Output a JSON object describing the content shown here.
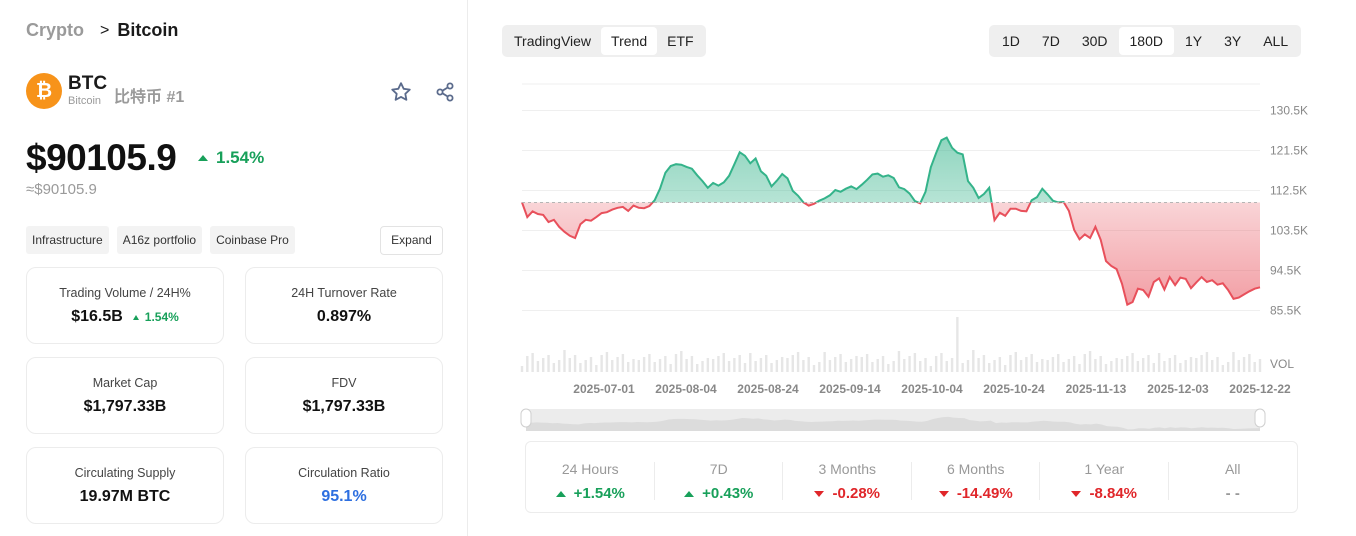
{
  "breadcrumb": {
    "parent": "Crypto",
    "current": "Bitcoin"
  },
  "coin": {
    "symbol": "BTC",
    "name": "Bitcoin",
    "cn_rank": "比特币 #1",
    "logo_glyph": "₿",
    "logo_color": "#f7931a"
  },
  "price": {
    "value": "$90105.9",
    "change": "1.54%",
    "approx": "≈$90105.9"
  },
  "tags": [
    "Infrastructure",
    "A16z portfolio",
    "Coinbase Pro"
  ],
  "expand_label": "Expand",
  "stats": [
    {
      "label": "Trading Volume / 24H%",
      "value": "$16.5B",
      "change": "1.54%"
    },
    {
      "label": "24H Turnover Rate",
      "value": "0.897%"
    },
    {
      "label": "Market Cap",
      "value": "$1,797.33B"
    },
    {
      "label": "FDV",
      "value": "$1,797.33B"
    },
    {
      "label": "Circulating Supply",
      "value": "19.97M BTC"
    },
    {
      "label": "Circulation Ratio",
      "value": "95.1%"
    }
  ],
  "view_tabs": [
    {
      "label": "TradingView",
      "active": false
    },
    {
      "label": "Trend",
      "active": true
    },
    {
      "label": "ETF",
      "active": false
    }
  ],
  "time_tabs": [
    {
      "label": "1D",
      "active": false
    },
    {
      "label": "7D",
      "active": false
    },
    {
      "label": "30D",
      "active": false
    },
    {
      "label": "180D",
      "active": true
    },
    {
      "label": "1Y",
      "active": false
    },
    {
      "label": "3Y",
      "active": false
    },
    {
      "label": "ALL",
      "active": false
    }
  ],
  "chart_data": {
    "type": "area",
    "baseline": 109800,
    "ylim": [
      82000,
      136000
    ],
    "y_ticks": [
      "130.5K",
      "121.5K",
      "112.5K",
      "103.5K",
      "94.5K",
      "85.5K"
    ],
    "y_tick_values": [
      130500,
      121500,
      112500,
      103500,
      94500,
      85500
    ],
    "volume_label": "VOL",
    "x_ticks": [
      "2025-07-01",
      "2025-08-04",
      "2025-08-24",
      "2025-09-14",
      "2025-10-04",
      "2025-10-24",
      "2025-11-13",
      "2025-12-03",
      "2025-12-22"
    ],
    "up_color": "#34b38a",
    "down_color": "#e8505b",
    "values": [
      109800,
      106500,
      107800,
      107200,
      107000,
      105400,
      105900,
      104300,
      103200,
      102300,
      101800,
      104900,
      105900,
      105700,
      106500,
      107400,
      107600,
      108200,
      108600,
      108800,
      107900,
      109100,
      108600,
      108500,
      109000,
      110300,
      112900,
      116500,
      118000,
      118400,
      118300,
      117800,
      117400,
      115900,
      114600,
      113100,
      114200,
      113600,
      114300,
      115800,
      118400,
      121100,
      120300,
      118600,
      119700,
      116800,
      115800,
      113400,
      114700,
      116200,
      115200,
      112400,
      111300,
      109800,
      109100,
      109500,
      110200,
      110700,
      111400,
      112600,
      112200,
      112900,
      113400,
      112800,
      113800,
      114900,
      116100,
      116300,
      115600,
      115900,
      115300,
      113200,
      112800,
      111800,
      110100,
      109600,
      112200,
      117700,
      120900,
      123800,
      124400,
      122100,
      121000,
      120600,
      114600,
      113100,
      110800,
      111700,
      113100,
      105800,
      107500,
      106800,
      108400,
      108400,
      107900,
      107800,
      110300,
      111000,
      112900,
      111600,
      110200,
      109800,
      109900,
      107900,
      103600,
      101500,
      102600,
      101800,
      104300,
      101400,
      96600,
      95500,
      94800,
      91500,
      86800,
      87400,
      90400,
      90100,
      88600,
      91900,
      92700,
      90200,
      93000,
      91200,
      92900,
      92600,
      90500,
      91800,
      93000,
      91900,
      92300,
      91300,
      91600,
      90100,
      88100,
      88400,
      89100,
      89800,
      90400,
      90700
    ]
  },
  "periods": [
    {
      "label": "24 Hours",
      "value": "+1.54%",
      "dir": "up"
    },
    {
      "label": "7D",
      "value": "+0.43%",
      "dir": "up"
    },
    {
      "label": "3 Months",
      "value": "-0.28%",
      "dir": "down"
    },
    {
      "label": "6 Months",
      "value": "-14.49%",
      "dir": "down"
    },
    {
      "label": "1 Year",
      "value": "-8.84%",
      "dir": "down"
    },
    {
      "label": "All",
      "value": "- -",
      "dir": "none"
    }
  ]
}
